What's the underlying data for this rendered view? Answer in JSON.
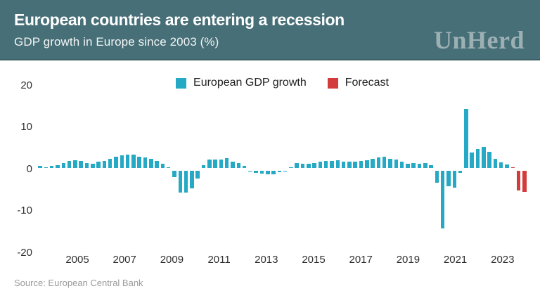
{
  "header": {
    "title": "European countries are entering a recession",
    "subtitle": "GDP growth in Europe since 2003 (%)",
    "brand": "UnHerd"
  },
  "legend": [
    {
      "label": "European GDP growth",
      "color": "#25a9c4"
    },
    {
      "label": "Forecast",
      "color": "#d23c3c"
    }
  ],
  "source": "Source: European Central Bank",
  "colors": {
    "header_background": "#476f77",
    "gdp_bar": "#25a9c4",
    "forecast_bar": "#d23c3c",
    "brand_text": "#9cb0b4"
  },
  "chart_data": {
    "type": "bar",
    "title": "European countries are entering a recession",
    "subtitle": "GDP growth in Europe since 2003 (%)",
    "unit": "percent",
    "frequency": "quarterly",
    "start_period": "2003 Q1",
    "grid": false,
    "legend_position": "top-center",
    "ylim": [
      -21,
      21
    ],
    "y_ticks": [
      20,
      10,
      0,
      -10,
      -20
    ],
    "x_tick_labels": [
      "2005",
      "2007",
      "2009",
      "2011",
      "2013",
      "2015",
      "2017",
      "2019",
      "2021",
      "2023"
    ],
    "series": [
      {
        "name": "European GDP growth",
        "color": "#25a9c4",
        "values": [
          0.8,
          0.4,
          0.7,
          1.0,
          1.5,
          2.0,
          2.1,
          1.9,
          1.4,
          1.3,
          1.7,
          1.9,
          2.5,
          3.0,
          3.2,
          3.5,
          3.4,
          3.0,
          2.8,
          2.4,
          2.0,
          1.3,
          0.3,
          -1.9,
          -5.5,
          -5.6,
          -4.5,
          -2.2,
          1.0,
          2.2,
          2.3,
          2.3,
          2.6,
          1.8,
          1.4,
          0.8,
          -0.3,
          -0.8,
          -1.0,
          -1.1,
          -1.2,
          -0.6,
          -0.3,
          0.4,
          1.4,
          1.2,
          1.3,
          1.5,
          1.8,
          2.0,
          2.0,
          2.1,
          1.8,
          1.7,
          1.8,
          2.0,
          2.1,
          2.5,
          2.8,
          2.9,
          2.5,
          2.2,
          1.7,
          1.2,
          1.5,
          1.3,
          1.4,
          1.0,
          -3.2,
          -14.2,
          -4.1,
          -4.4,
          -0.9,
          14.3,
          4.0,
          4.8,
          5.3,
          4.2,
          2.4,
          1.6,
          1.1
        ]
      },
      {
        "name": "Forecast",
        "color": "#d23c3c",
        "values": [
          0.5,
          -5.0,
          -5.3
        ]
      }
    ]
  }
}
